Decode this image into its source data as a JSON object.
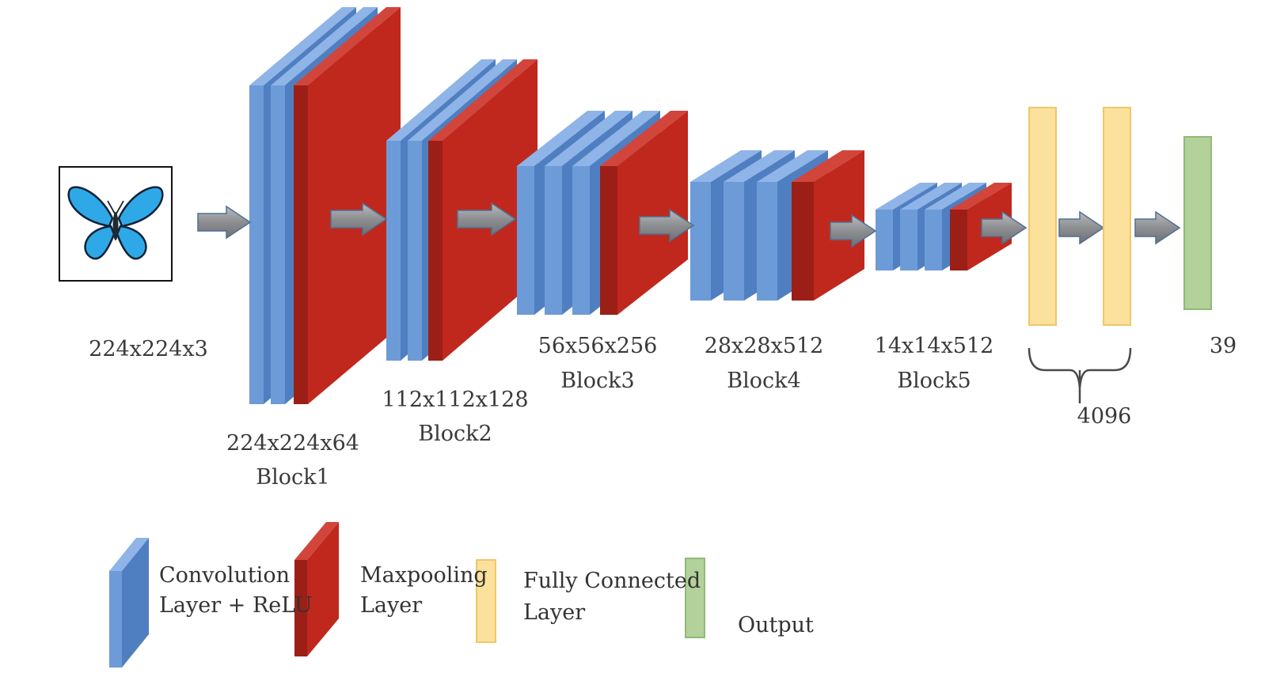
{
  "colors": {
    "conv_face": "#6d9bd8",
    "conv_top": "#8fb4e8",
    "conv_side": "#4f7fc0",
    "pool_face": "#9c1f17",
    "pool_top": "#d2453b",
    "pool_side": "#c0281d",
    "fc_fill": "#fbe19b",
    "fc_stroke": "#f0c76a",
    "out_fill": "#b3d19a",
    "out_stroke": "#8fbb76",
    "arrow_fill": "#8f9194",
    "arrow_stroke": "#4f6f94",
    "butterfly": "#2fa8e8",
    "text": "#3a3a3a"
  },
  "input": {
    "icon": "butterfly-icon",
    "dims": "224x224x3"
  },
  "blocks": [
    {
      "dims": "224x224x64",
      "name": "Block1",
      "conv_layers": 2
    },
    {
      "dims": "112x112x128",
      "name": "Block2",
      "conv_layers": 2
    },
    {
      "dims": "56x56x256",
      "name": "Block3",
      "conv_layers": 3
    },
    {
      "dims": "28x28x512",
      "name": "Block4",
      "conv_layers": 3
    },
    {
      "dims": "14x14x512",
      "name": "Block5",
      "conv_layers": 3
    }
  ],
  "fully_connected": {
    "units": "4096",
    "layers": 2
  },
  "output": {
    "units": "39"
  },
  "legend": {
    "conv": [
      "Convolution",
      "Layer + ReLU"
    ],
    "pool": [
      "Maxpooling",
      "Layer"
    ],
    "fc": [
      "Fully Connected",
      "Layer"
    ],
    "out": "Output"
  }
}
